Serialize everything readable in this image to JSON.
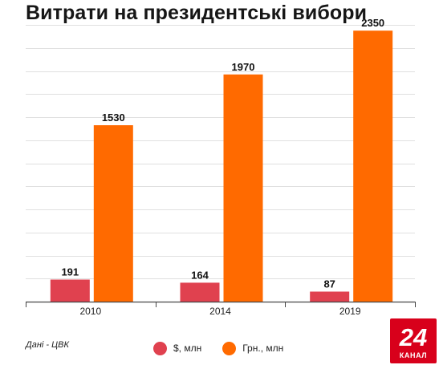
{
  "title": "Витрати на президентські вибори",
  "source_note": "Дані - ЦВК",
  "brand": {
    "logo_number": "24",
    "logo_text": "КАНАЛ",
    "logo_color": "#d8001b"
  },
  "colors": {
    "usd": "#e0414f",
    "uah": "#ff6a00",
    "grid": "#e0e0e0",
    "axis": "#444444"
  },
  "chart_data": {
    "type": "bar",
    "title": "Витрати на президентські вибори",
    "categories": [
      "2010",
      "2014",
      "2019"
    ],
    "series": [
      {
        "name": "$, млн",
        "color": "#e0414f",
        "values": [
          191,
          164,
          87
        ]
      },
      {
        "name": "Грн., млн",
        "color": "#ff6a00",
        "values": [
          1530,
          1970,
          2350
        ]
      }
    ],
    "ylim": [
      0,
      2400
    ],
    "grid": true,
    "legend_position": "bottom",
    "data_labels": true
  }
}
